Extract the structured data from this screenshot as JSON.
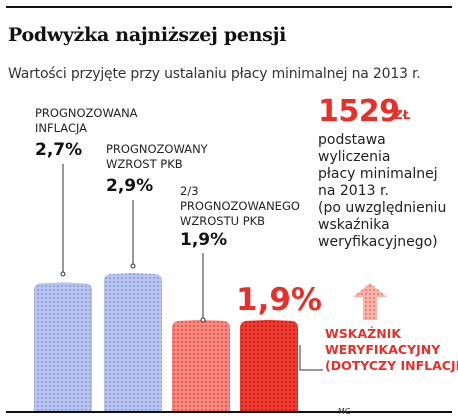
{
  "title": "Podwyżka najniższej pensji",
  "subtitle": "Wartości przyjęte przy ustalaniu płacy minimalnej na 2013 r.",
  "colors": {
    "blue": "#a9b7e8",
    "pink": "#f27c72",
    "red": "#e8302a",
    "arrow": "#f5a59c",
    "text": "#111111"
  },
  "chart_data": {
    "type": "bar",
    "title": "Podwyżka najniższej pensji",
    "subtitle": "Wartości przyjęte przy ustalaniu płacy minimalnej na 2013 r.",
    "categories": [
      "PROGNOZOWANA INFLACJA",
      "PROGNOZOWANY WZROST PKB",
      "2/3 PROGNOZOWANEGO WZROSTU PKB",
      "WSKAŹNIK WERYFIKACYJNY (DOTYCZY INFLACJI)"
    ],
    "values": [
      2.7,
      2.9,
      1.9,
      1.9
    ],
    "value_labels": [
      "2,7%",
      "2,9%",
      "1,9%",
      "1,9%"
    ],
    "unit": "%",
    "ylim": [
      0,
      2.9
    ],
    "grid": false
  },
  "labels": {
    "bar1": [
      "PROGNOZOWANA",
      "INFLACJA"
    ],
    "bar2": [
      "PROGNOZOWANY",
      "WZROST PKB"
    ],
    "bar3": [
      "2/3",
      "PROGNOZOWANEGO",
      "WZROSTU PKB"
    ],
    "bar4": [
      "WSKAŹNIK",
      "WERYFIKACYJNY",
      "(DOTYCZY INFLACJI)"
    ]
  },
  "highlight": {
    "number": "1529",
    "unit": "ZŁ",
    "description": [
      "podstawa",
      "wyliczenia",
      "płacy minimalnej",
      "na 2013 r.",
      "(po uwzględnieniu",
      "wskaźnika",
      "weryfikacyjnego)"
    ]
  },
  "credit": "MC"
}
